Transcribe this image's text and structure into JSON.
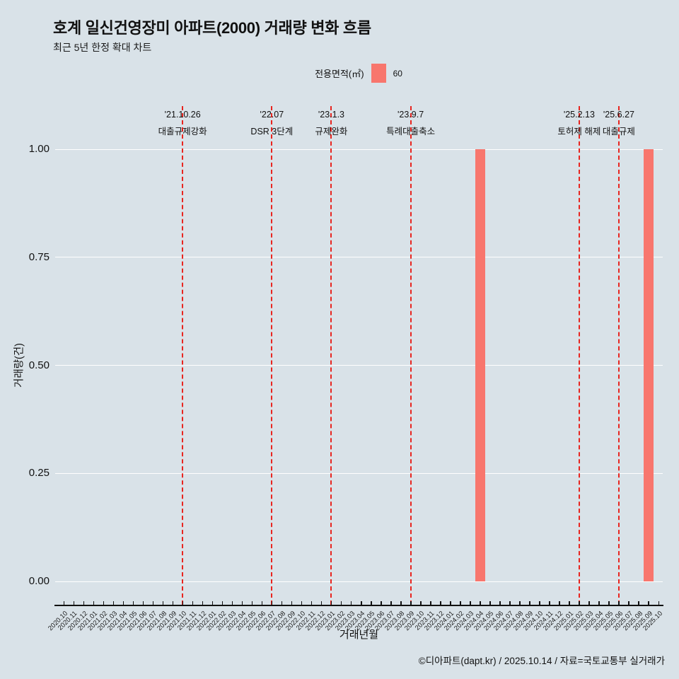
{
  "page": {
    "background": "#d9e2e8",
    "title": "호계 일신건영장미 아파트(2000) 거래량 변화 흐름",
    "subtitle": "최근 5년 한정 확대 차트",
    "caption": "©디아파트(dapt.kr) / 2025.10.14 / 자료=국토교통부 실거래가"
  },
  "legend": {
    "title": "전용면적(㎡)",
    "items": [
      {
        "label": "60",
        "color": "#f8766d"
      }
    ]
  },
  "chart_data": {
    "type": "bar",
    "title": "호계 일신건영장미 아파트(2000) 거래량 변화 흐름",
    "subtitle": "최근 5년 한정 확대 차트",
    "xlabel": "거래년월",
    "ylabel": "거래량(건)",
    "ylim": [
      0,
      1
    ],
    "yticks": [
      0,
      0.25,
      0.5,
      0.75,
      1
    ],
    "ytick_labels": [
      "0.00",
      "0.25",
      "0.50",
      "0.75",
      "1.00"
    ],
    "grid": true,
    "legend_position": "top",
    "colors": {
      "grid": "#ffffff",
      "axis": "#111111",
      "event": "#e8251f"
    },
    "categories": [
      "2020.10",
      "2020.11",
      "2020.12",
      "2021.01",
      "2021.02",
      "2021.03",
      "2021.04",
      "2021.05",
      "2021.06",
      "2021.07",
      "2021.08",
      "2021.09",
      "2021.10",
      "2021.11",
      "2021.12",
      "2022.01",
      "2022.02",
      "2022.03",
      "2022.04",
      "2022.05",
      "2022.06",
      "2022.07",
      "2022.08",
      "2022.09",
      "2022.10",
      "2022.11",
      "2022.12",
      "2023.01",
      "2023.02",
      "2023.03",
      "2023.04",
      "2023.05",
      "2023.06",
      "2023.07",
      "2023.08",
      "2023.09",
      "2023.10",
      "2023.11",
      "2023.12",
      "2024.01",
      "2024.02",
      "2024.03",
      "2024.04",
      "2024.05",
      "2024.06",
      "2024.07",
      "2024.08",
      "2024.09",
      "2024.10",
      "2024.11",
      "2024.12",
      "2025.01",
      "2025.02",
      "2025.03",
      "2025.04",
      "2025.05",
      "2025.06",
      "2025.07",
      "2025.08",
      "2025.09",
      "2025.10"
    ],
    "series": [
      {
        "name": "60",
        "color": "#f8766d",
        "points": [
          {
            "x": "2024.04",
            "y": 1
          },
          {
            "x": "2025.09",
            "y": 1
          }
        ]
      }
    ],
    "events": [
      {
        "date": "'21.10.26",
        "label": "대출규제강화",
        "x": "2021.10"
      },
      {
        "date": "'22.07",
        "label": "DSR 3단계",
        "x": "2022.07"
      },
      {
        "date": "'23.1.3",
        "label": "규제완화",
        "x": "2023.01"
      },
      {
        "date": "'23.9.7",
        "label": "특례대출축소",
        "x": "2023.09"
      },
      {
        "date": "'25.2.13",
        "label": "토허제 해제",
        "x": "2025.02"
      },
      {
        "date": "'25.6.27",
        "label": "대출규제",
        "x": "2025.06"
      }
    ]
  }
}
